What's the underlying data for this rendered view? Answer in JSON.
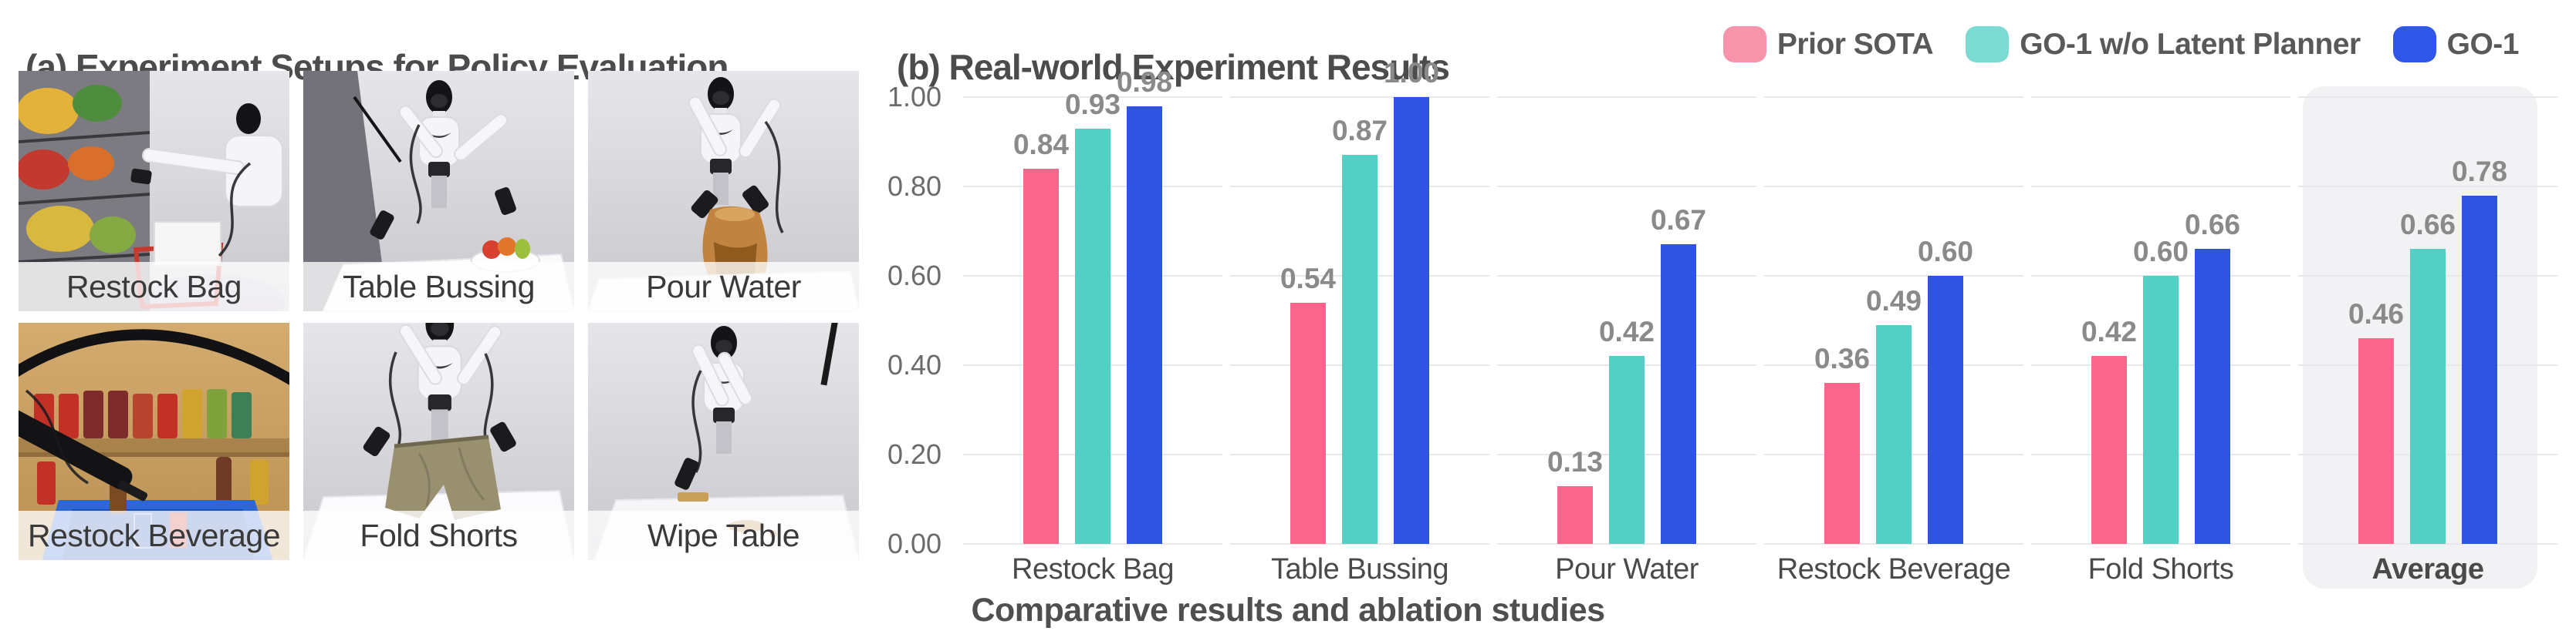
{
  "panel_a": {
    "title": "(a) Experiment Setups for Policy Evaluation",
    "photos": [
      {
        "label": "Restock Bag"
      },
      {
        "label": "Table Bussing"
      },
      {
        "label": "Pour Water"
      },
      {
        "label": "Restock Beverage"
      },
      {
        "label": "Fold Shorts"
      },
      {
        "label": "Wipe Table"
      }
    ]
  },
  "panel_b": {
    "title": "(b) Real-world Experiment Results",
    "caption": "Comparative results and ablation studies"
  },
  "legend": {
    "items": [
      {
        "label": "Prior SOTA",
        "swatch_color": "#F793AB"
      },
      {
        "label": "GO-1 w/o Latent Planner",
        "swatch_color": "#7BDBD2"
      },
      {
        "label": "GO-1",
        "swatch_color": "#2F57E8"
      }
    ]
  },
  "chart_data": {
    "type": "bar",
    "title": "(b) Real-world Experiment Results",
    "categories": [
      "Restock Bag",
      "Table Bussing",
      "Pour Water",
      "Restock Beverage",
      "Fold Shorts",
      "Average"
    ],
    "series": [
      {
        "name": "Prior SOTA",
        "color": "#FC668D",
        "values": [
          0.84,
          0.54,
          0.13,
          0.36,
          0.42,
          0.46
        ]
      },
      {
        "name": "GO-1 w/o Latent Planner",
        "color": "#53CFC5",
        "values": [
          0.93,
          0.87,
          0.42,
          0.49,
          0.6,
          0.66
        ]
      },
      {
        "name": "GO-1",
        "color": "#2F54E3",
        "values": [
          0.98,
          1.0,
          0.67,
          0.6,
          0.66,
          0.78
        ]
      }
    ],
    "ylim": [
      0,
      1.0
    ],
    "yticks": [
      0,
      0.2,
      0.4,
      0.6,
      0.8,
      1.0
    ],
    "grid": true,
    "value_labels": true,
    "legend_position": "top-right",
    "highlighted_category": "Average",
    "highlight_color": "#F2F2F4",
    "gridline_color": "#E8E8EA",
    "value_label_color": "#8A8A8A",
    "axis_label_color": "#4A4A4A",
    "xlabel": "",
    "ylabel": ""
  }
}
